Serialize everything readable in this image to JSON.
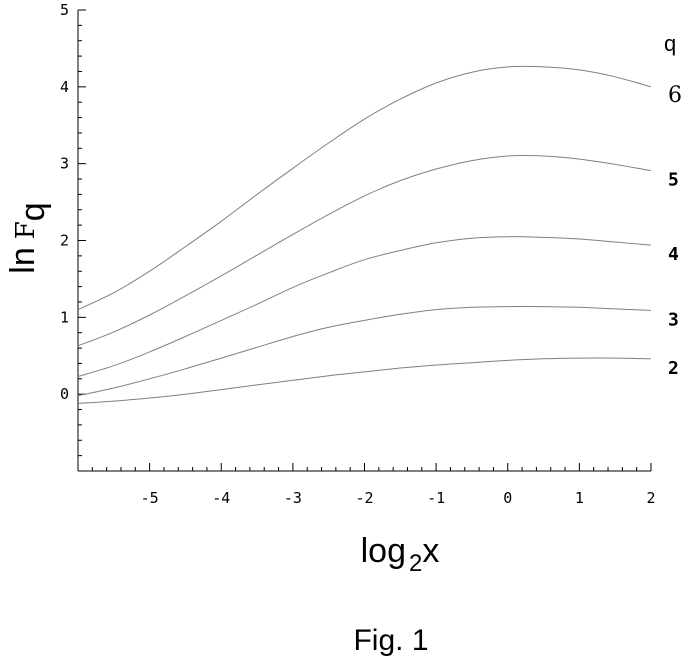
{
  "chart_data": {
    "type": "line",
    "title": "",
    "caption": "Fig. 1",
    "xlabel": {
      "base": "log",
      "sub": "2",
      "var": "x"
    },
    "ylabel": {
      "base": "ln",
      "F": "F",
      "sub": "q"
    },
    "xlim": [
      -6,
      2
    ],
    "ylim": [
      -1,
      5
    ],
    "xticks": [
      "-5",
      "-4",
      "-3",
      "-2",
      "-1",
      "0",
      "1",
      "2"
    ],
    "yticks": [
      "0",
      "1",
      "2",
      "3",
      "4",
      "5"
    ],
    "legend_header": "q",
    "grid": false,
    "x": [
      -6,
      -5.5,
      -5,
      -4.5,
      -4,
      -3.5,
      -3,
      -2.5,
      -2,
      -1.5,
      -1,
      -0.5,
      0,
      0.5,
      1,
      1.5,
      2
    ],
    "series": [
      {
        "name": "2",
        "values": [
          -0.12,
          -0.09,
          -0.05,
          0.0,
          0.06,
          0.12,
          0.18,
          0.24,
          0.29,
          0.34,
          0.38,
          0.41,
          0.44,
          0.46,
          0.47,
          0.47,
          0.46
        ]
      },
      {
        "name": "3",
        "values": [
          -0.02,
          0.08,
          0.2,
          0.33,
          0.47,
          0.61,
          0.75,
          0.87,
          0.96,
          1.04,
          1.1,
          1.13,
          1.14,
          1.14,
          1.13,
          1.11,
          1.09
        ]
      },
      {
        "name": "4",
        "values": [
          0.23,
          0.37,
          0.55,
          0.75,
          0.96,
          1.17,
          1.39,
          1.58,
          1.75,
          1.87,
          1.97,
          2.03,
          2.05,
          2.04,
          2.02,
          1.98,
          1.94
        ]
      },
      {
        "name": "5",
        "values": [
          0.63,
          0.81,
          1.03,
          1.28,
          1.54,
          1.81,
          2.08,
          2.34,
          2.58,
          2.78,
          2.93,
          3.04,
          3.1,
          3.1,
          3.06,
          2.99,
          2.91
        ]
      },
      {
        "name": "6",
        "values": [
          1.1,
          1.32,
          1.6,
          1.92,
          2.25,
          2.6,
          2.94,
          3.27,
          3.58,
          3.84,
          4.05,
          4.19,
          4.26,
          4.26,
          4.22,
          4.13,
          4.0
        ]
      }
    ],
    "label_styles": {
      "6": "serif",
      "5": "bold",
      "4": "bold",
      "3": "bold",
      "2": "bold"
    },
    "line_color": "#808080",
    "axis_color": "#000000"
  }
}
